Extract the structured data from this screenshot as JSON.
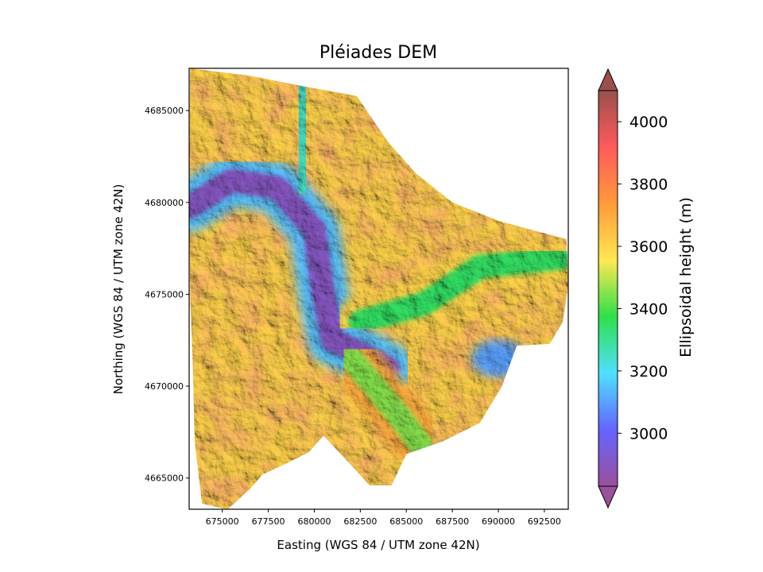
{
  "chart_data": {
    "type": "heatmap",
    "title": "Pléiades DEM",
    "xlabel": "Easting (WGS 84 / UTM zone 42N)",
    "ylabel": "Northing (WGS 84 / UTM zone 42N)",
    "xlim": [
      673200,
      693800
    ],
    "ylim": [
      4663300,
      4687300
    ],
    "x_ticks": [
      675000,
      677500,
      680000,
      682500,
      685000,
      687500,
      690000,
      692500
    ],
    "x_tick_labels": [
      "675000",
      "677500",
      "680000",
      "682500",
      "685000",
      "687500",
      "690000",
      "692500"
    ],
    "y_ticks": [
      4665000,
      4670000,
      4675000,
      4680000,
      4685000
    ],
    "y_tick_labels": [
      "4665000",
      "4670000",
      "4675000",
      "4680000",
      "4685000"
    ],
    "colorbar": {
      "label": "Ellipsoidal height (m)",
      "range": [
        2830,
        4100
      ],
      "extend": "both",
      "ticks": [
        3000,
        3200,
        3400,
        3600,
        3800,
        4000
      ],
      "tick_labels": [
        "3000",
        "3200",
        "3400",
        "3600",
        "3800",
        "4000"
      ],
      "colormap": "rainbow with hillshade",
      "colors": [
        "#9c4f9c",
        "#6464ff",
        "#4fe0ff",
        "#2ee04a",
        "#ffe84f",
        "#ff9a3a",
        "#ff5a5a",
        "#9a4f4f"
      ]
    },
    "hillshade": true,
    "grid": false,
    "legend": "none",
    "features": [
      {
        "name": "main valley",
        "elevation_approx": 2900,
        "path": [
          [
            673300,
            4679800
          ],
          [
            675500,
            4681200
          ],
          [
            678000,
            4680800
          ],
          [
            680000,
            4678500
          ],
          [
            680500,
            4675000
          ],
          [
            681000,
            4672500
          ],
          [
            682500,
            4671800
          ],
          [
            684000,
            4671000
          ]
        ]
      },
      {
        "name": "side valley north",
        "elevation_approx": 3250,
        "path": [
          [
            679500,
            4686000
          ],
          [
            679200,
            4683000
          ],
          [
            679500,
            4681000
          ]
        ]
      },
      {
        "name": "side valley east",
        "elevation_approx": 3350,
        "path": [
          [
            682500,
            4673500
          ],
          [
            686000,
            4674500
          ],
          [
            689000,
            4676500
          ],
          [
            693500,
            4677000
          ]
        ]
      },
      {
        "name": "basin east",
        "elevation_approx": 3100,
        "center": [
          690000,
          4671500
        ]
      },
      {
        "name": "side valley south",
        "elevation_approx": 3450,
        "path": [
          [
            682000,
            4671500
          ],
          [
            684500,
            4668500
          ],
          [
            686000,
            4666500
          ]
        ]
      }
    ]
  }
}
